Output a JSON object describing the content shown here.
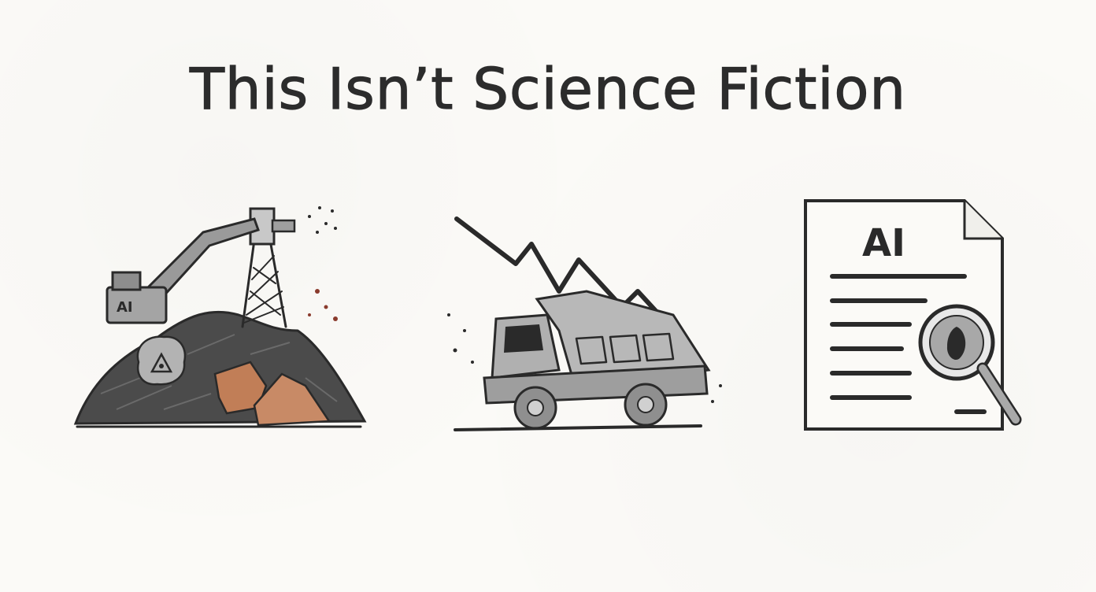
{
  "title": "This Isn’t Science Fiction",
  "panels": {
    "mining": {
      "label": "AI"
    },
    "report": {
      "label": "AI"
    }
  },
  "colors": {
    "ink": "#2a2a2a",
    "ore": "#c17e57",
    "gray": "#a9a9a9",
    "dark_pile": "#4b4b4b",
    "paper": "#fbfaf7"
  }
}
